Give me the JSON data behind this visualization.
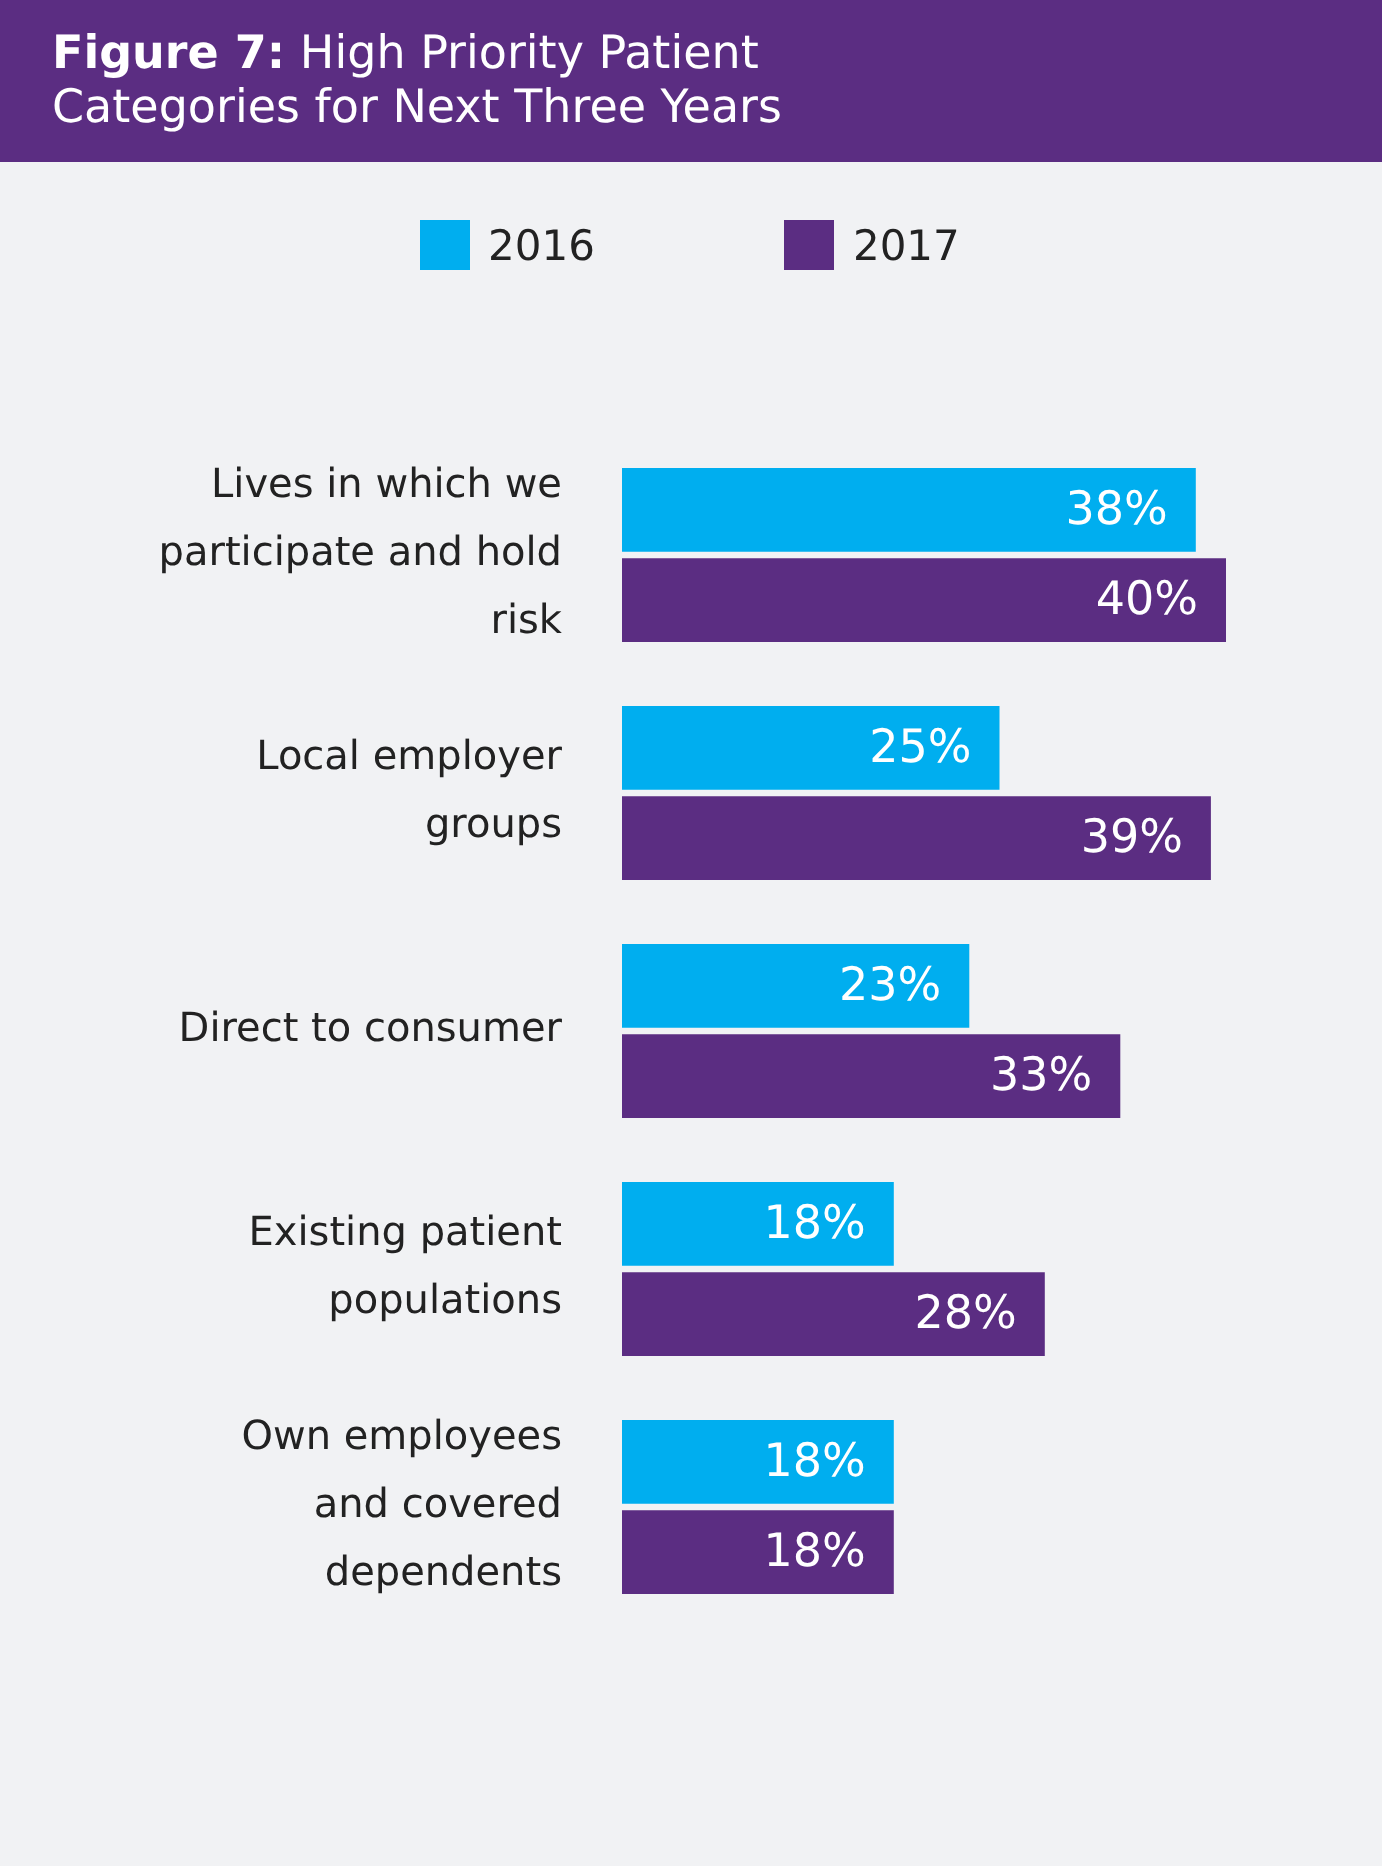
{
  "chart_data": {
    "type": "bar",
    "orientation": "horizontal",
    "legend": "top",
    "title": "Figure 7: High Priority Patient Categories for Next Three Years",
    "categories": [
      "Lives in which we participate and hold risk",
      "Local employer groups",
      "Direct to consumer",
      "Existing patient populations",
      "Own employees and covered dependents"
    ],
    "series": [
      {
        "name": "2016",
        "color": "#00aeef",
        "values": [
          38,
          25,
          23,
          18,
          18
        ],
        "value_labels": [
          "38%",
          "25%",
          "23%",
          "18%",
          "18%"
        ]
      },
      {
        "name": "2017",
        "color": "#5b2d82",
        "values": [
          40,
          39,
          33,
          28,
          18
        ],
        "value_labels": [
          "40%",
          "39%",
          "33%",
          "28%",
          "18%"
        ]
      }
    ]
  }
}
